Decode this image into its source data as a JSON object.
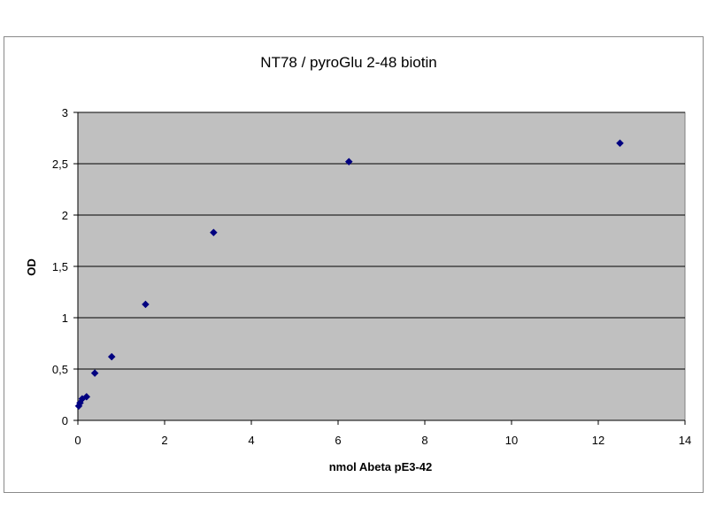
{
  "chart_data": {
    "type": "scatter",
    "title": "NT78 / pyroGlu 2-48 biotin",
    "xlabel": "nmol Abeta pE3-42",
    "ylabel": "OD",
    "xlim": [
      0,
      14
    ],
    "ylim": [
      0,
      3
    ],
    "x_ticks": [
      "0",
      "2",
      "4",
      "6",
      "8",
      "10",
      "12",
      "14"
    ],
    "y_ticks": [
      "0",
      "0,5",
      "1",
      "1,5",
      "2",
      "2,5",
      "3"
    ],
    "grid": "horizontal",
    "legend": "none",
    "plot_background": "#c0c0c0",
    "marker_color": "#000080",
    "marker": "diamond",
    "points": [
      {
        "x": 0.02,
        "y": 0.14
      },
      {
        "x": 0.05,
        "y": 0.17
      },
      {
        "x": 0.1,
        "y": 0.21
      },
      {
        "x": 0.2,
        "y": 0.23
      },
      {
        "x": 0.39,
        "y": 0.46
      },
      {
        "x": 0.78,
        "y": 0.62
      },
      {
        "x": 1.56,
        "y": 1.13
      },
      {
        "x": 3.13,
        "y": 1.83
      },
      {
        "x": 6.25,
        "y": 2.52
      },
      {
        "x": 12.5,
        "y": 2.7
      }
    ]
  }
}
